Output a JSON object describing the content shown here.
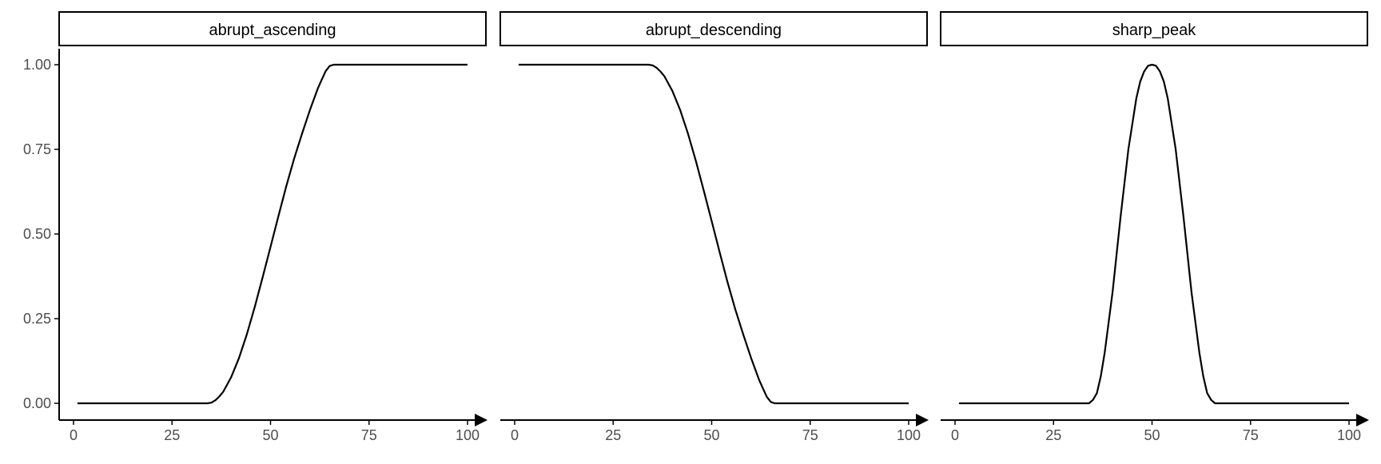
{
  "chart_data": {
    "type": "line",
    "layout": "faceted",
    "xlim": [
      0,
      100
    ],
    "ylim": [
      0,
      1
    ],
    "x_ticks": [
      0,
      25,
      50,
      75,
      100
    ],
    "y_ticks": [
      "0.00",
      "0.25",
      "0.50",
      "0.75",
      "1.00"
    ],
    "grid": false,
    "legend": "none",
    "line_color": "#000000",
    "axis_color": "#000000",
    "tick_label_color": "#4d4d4d",
    "panels": [
      {
        "title": "abrupt_ascending",
        "x": [
          1,
          5,
          10,
          15,
          20,
          25,
          30,
          33,
          34,
          35,
          36,
          37,
          38,
          40,
          42,
          44,
          46,
          48,
          50,
          52,
          54,
          56,
          58,
          60,
          62,
          63,
          64,
          65,
          66,
          70,
          75,
          80,
          85,
          90,
          95,
          100
        ],
        "y": [
          0,
          0,
          0,
          0,
          0,
          0,
          0,
          0,
          0,
          0.002,
          0.009,
          0.02,
          0.034,
          0.077,
          0.134,
          0.204,
          0.285,
          0.372,
          0.462,
          0.553,
          0.641,
          0.723,
          0.796,
          0.866,
          0.93,
          0.956,
          0.981,
          0.996,
          1,
          1,
          1,
          1,
          1,
          1,
          1,
          1
        ]
      },
      {
        "title": "abrupt_descending",
        "x": [
          1,
          5,
          10,
          15,
          20,
          25,
          30,
          33,
          34,
          35,
          36,
          37,
          38,
          40,
          42,
          44,
          46,
          48,
          50,
          52,
          54,
          56,
          58,
          60,
          62,
          63,
          64,
          65,
          66,
          70,
          75,
          80,
          85,
          90,
          95,
          100
        ],
        "y": [
          1,
          1,
          1,
          1,
          1,
          1,
          1,
          1,
          1,
          0.998,
          0.991,
          0.98,
          0.966,
          0.923,
          0.866,
          0.796,
          0.715,
          0.628,
          0.538,
          0.447,
          0.359,
          0.277,
          0.204,
          0.134,
          0.07,
          0.044,
          0.019,
          0.004,
          0,
          0,
          0,
          0,
          0,
          0,
          0,
          0
        ]
      },
      {
        "title": "sharp_peak",
        "x": [
          1,
          5,
          10,
          15,
          20,
          25,
          30,
          33,
          34,
          35,
          36,
          37,
          38,
          40,
          42,
          44,
          46,
          47,
          48,
          49,
          50,
          51,
          52,
          53,
          54,
          56,
          58,
          60,
          62,
          63,
          64,
          65,
          66,
          70,
          75,
          80,
          85,
          90,
          95,
          100
        ],
        "y": [
          0,
          0,
          0,
          0,
          0,
          0,
          0,
          0,
          0,
          0.01,
          0.03,
          0.08,
          0.15,
          0.33,
          0.55,
          0.75,
          0.9,
          0.95,
          0.98,
          0.997,
          1,
          0.997,
          0.98,
          0.95,
          0.9,
          0.75,
          0.55,
          0.33,
          0.15,
          0.08,
          0.03,
          0.01,
          0,
          0,
          0,
          0,
          0,
          0,
          0,
          0
        ]
      }
    ]
  }
}
